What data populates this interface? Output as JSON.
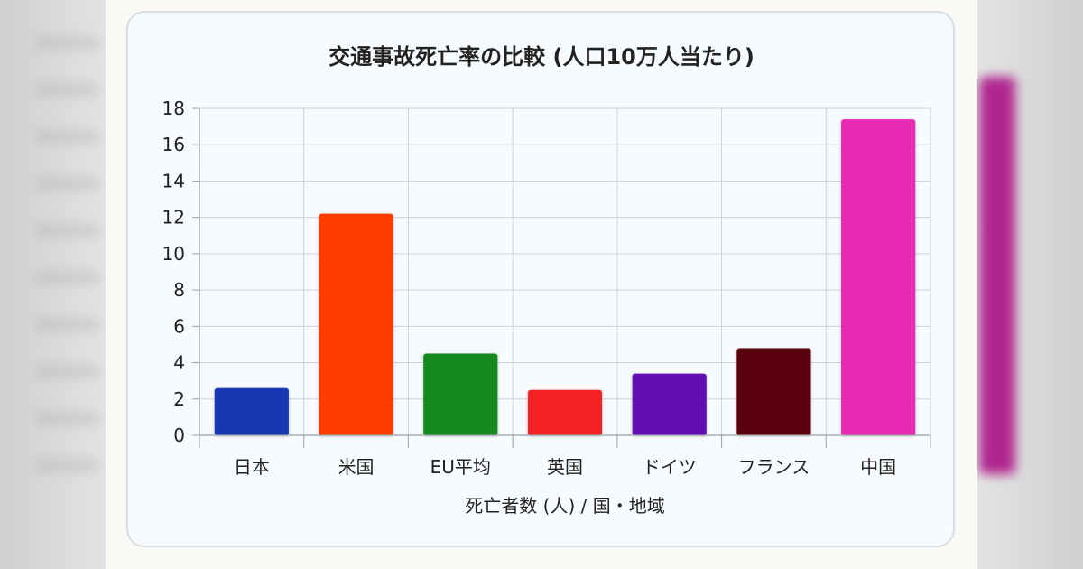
{
  "chart_data": {
    "type": "bar",
    "title": "交通事故死亡率の比較 (人口10万人当たり)",
    "xlabel": "死亡者数 (人) / 国・地域",
    "ylabel": "",
    "ylim": [
      0,
      18
    ],
    "yticks": [
      0,
      2,
      4,
      6,
      8,
      10,
      12,
      14,
      16,
      18
    ],
    "grid": true,
    "legend": "none",
    "categories": [
      "日本",
      "米国",
      "EU平均",
      "英国",
      "ドイツ",
      "フランス",
      "中国"
    ],
    "values": [
      2.6,
      12.2,
      4.5,
      2.5,
      3.4,
      4.8,
      17.4
    ],
    "colors": [
      "#1239b0",
      "#ff3b05",
      "#14891a",
      "#f42420",
      "#6411b4",
      "#5a0608",
      "#e62ab1"
    ]
  }
}
